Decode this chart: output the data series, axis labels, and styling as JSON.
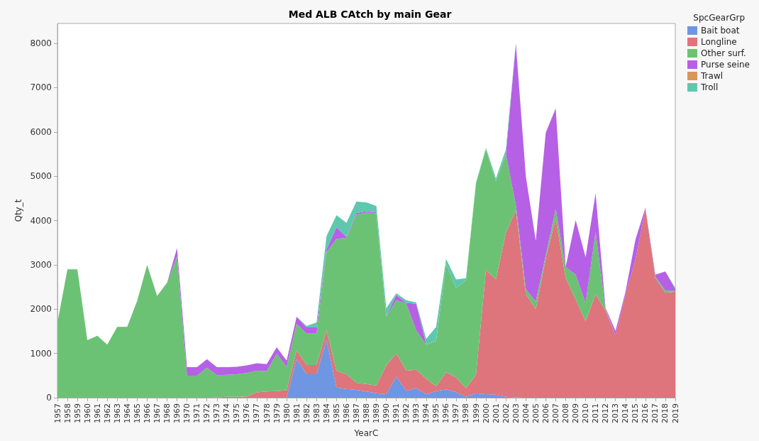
{
  "chart_data": {
    "type": "area",
    "title": "Med ALB CAtch by main Gear",
    "xlabel": "YearC",
    "ylabel": "Qty_t",
    "legend_title": "SpcGearGrp",
    "legend": "right",
    "stacked": true,
    "grid": false,
    "categories": [
      "1957",
      "1958",
      "1959",
      "1960",
      "1961",
      "1962",
      "1963",
      "1964",
      "1965",
      "1966",
      "1967",
      "1968",
      "1969",
      "1970",
      "1971",
      "1972",
      "1973",
      "1974",
      "1975",
      "1976",
      "1977",
      "1978",
      "1979",
      "1980",
      "1981",
      "1982",
      "1983",
      "1984",
      "1985",
      "1986",
      "1987",
      "1988",
      "1989",
      "1990",
      "1991",
      "1992",
      "1993",
      "1994",
      "1995",
      "1996",
      "1997",
      "1998",
      "1999",
      "2000",
      "2001",
      "2002",
      "2003",
      "2004",
      "2005",
      "2006",
      "2007",
      "2008",
      "2009",
      "2010",
      "2011",
      "2012",
      "2013",
      "2014",
      "2015",
      "2016",
      "2017",
      "2018",
      "2019"
    ],
    "ylim": [
      0,
      8450
    ],
    "yticks": [
      0,
      1000,
      2000,
      3000,
      4000,
      5000,
      6000,
      7000,
      8000
    ],
    "series": [
      {
        "name": "Bait boat",
        "color": "#6f96e2",
        "values": [
          0,
          0,
          0,
          0,
          0,
          0,
          0,
          0,
          0,
          0,
          0,
          0,
          0,
          0,
          0,
          0,
          0,
          0,
          0,
          0,
          0,
          0,
          0,
          0,
          880,
          530,
          530,
          1310,
          230,
          200,
          180,
          140,
          100,
          80,
          480,
          160,
          220,
          80,
          150,
          190,
          130,
          20,
          100,
          80,
          70,
          20,
          10,
          0,
          0,
          0,
          0,
          0,
          0,
          0,
          0,
          0,
          0,
          0,
          0,
          0,
          0,
          0,
          0
        ]
      },
      {
        "name": "Longline",
        "color": "#de747c",
        "values": [
          0,
          0,
          0,
          0,
          0,
          0,
          0,
          0,
          0,
          0,
          0,
          0,
          0,
          0,
          0,
          0,
          10,
          20,
          20,
          30,
          120,
          140,
          150,
          170,
          190,
          210,
          210,
          210,
          380,
          330,
          160,
          170,
          180,
          650,
          520,
          450,
          410,
          350,
          110,
          390,
          330,
          200,
          420,
          2800,
          2600,
          3700,
          4230,
          2340,
          2000,
          3140,
          4040,
          2700,
          2220,
          1720,
          2340,
          1970,
          1410,
          2330,
          3120,
          4260,
          2700,
          2370,
          2390
        ]
      },
      {
        "name": "Other surf.",
        "color": "#6cc274",
        "values": [
          1700,
          2900,
          2900,
          1300,
          1400,
          1200,
          1600,
          1600,
          2190,
          3000,
          2300,
          2600,
          3190,
          500,
          500,
          680,
          500,
          500,
          510,
          530,
          490,
          460,
          840,
          530,
          600,
          710,
          710,
          1770,
          2980,
          3080,
          3790,
          3870,
          3880,
          1100,
          1200,
          1520,
          890,
          770,
          1020,
          2440,
          2020,
          2430,
          4320,
          2730,
          2220,
          1780,
          110,
          110,
          170,
          80,
          220,
          250,
          560,
          420,
          1400,
          30,
          0,
          0,
          0,
          0,
          30,
          50,
          30
        ]
      },
      {
        "name": "Purse seine",
        "color": "#b660e6",
        "values": [
          0,
          0,
          0,
          0,
          0,
          0,
          0,
          0,
          0,
          0,
          0,
          0,
          190,
          190,
          190,
          190,
          180,
          170,
          170,
          170,
          170,
          160,
          150,
          140,
          160,
          140,
          140,
          60,
          260,
          20,
          40,
          30,
          20,
          10,
          120,
          10,
          600,
          10,
          0,
          0,
          0,
          0,
          0,
          0,
          0,
          0,
          3640,
          2550,
          1370,
          2760,
          2270,
          10,
          1230,
          1030,
          880,
          30,
          100,
          60,
          450,
          30,
          50,
          430,
          40
        ]
      },
      {
        "name": "Trawl",
        "color": "#d9965a",
        "values": [
          0,
          0,
          0,
          0,
          0,
          0,
          0,
          0,
          0,
          0,
          0,
          0,
          0,
          0,
          0,
          0,
          0,
          0,
          0,
          0,
          0,
          0,
          0,
          0,
          0,
          0,
          0,
          0,
          0,
          0,
          0,
          0,
          0,
          0,
          0,
          0,
          0,
          0,
          0,
          0,
          0,
          0,
          0,
          0,
          0,
          0,
          0,
          0,
          0,
          10,
          10,
          0,
          0,
          0,
          0,
          0,
          0,
          0,
          0,
          0,
          0,
          0,
          0
        ]
      },
      {
        "name": "Troll",
        "color": "#5ec8ae",
        "values": [
          0,
          0,
          0,
          0,
          0,
          0,
          0,
          0,
          0,
          0,
          0,
          0,
          0,
          0,
          0,
          0,
          0,
          0,
          0,
          0,
          0,
          0,
          0,
          0,
          0,
          30,
          110,
          300,
          270,
          320,
          260,
          200,
          150,
          180,
          40,
          60,
          30,
          120,
          320,
          110,
          190,
          50,
          20,
          30,
          60,
          110,
          20,
          0,
          0,
          0,
          0,
          0,
          0,
          0,
          0,
          0,
          0,
          0,
          0,
          0,
          0,
          0,
          20
        ]
      }
    ]
  }
}
